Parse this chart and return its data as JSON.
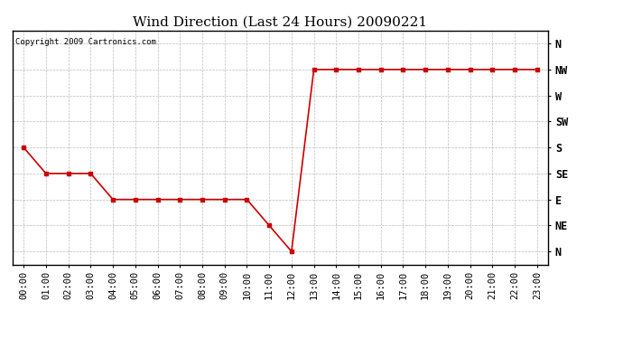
{
  "title": "Wind Direction (Last 24 Hours) 20090221",
  "copyright": "Copyright 2009 Cartronics.com",
  "x_labels": [
    "00:00",
    "01:00",
    "02:00",
    "03:00",
    "04:00",
    "05:00",
    "06:00",
    "07:00",
    "08:00",
    "09:00",
    "10:00",
    "11:00",
    "12:00",
    "13:00",
    "14:00",
    "15:00",
    "16:00",
    "17:00",
    "18:00",
    "19:00",
    "20:00",
    "21:00",
    "22:00",
    "23:00"
  ],
  "y_ticks_labels": [
    "N",
    "NW",
    "W",
    "SW",
    "S",
    "SE",
    "E",
    "NE",
    "N"
  ],
  "y_ticks_values": [
    8,
    7,
    6,
    5,
    4,
    3,
    2,
    1,
    0
  ],
  "data_y": [
    4,
    3,
    3,
    3,
    2,
    2,
    2,
    2,
    2,
    2,
    2,
    1,
    0,
    7,
    7,
    7,
    7,
    7,
    7,
    7,
    7,
    7,
    7,
    7
  ],
  "line_color": "#cc0000",
  "marker": "s",
  "marker_size": 2.5,
  "background_color": "#ffffff",
  "grid_color": "#bbbbbb",
  "title_fontsize": 11,
  "copyright_fontsize": 6.5,
  "tick_label_fontsize": 7.5
}
